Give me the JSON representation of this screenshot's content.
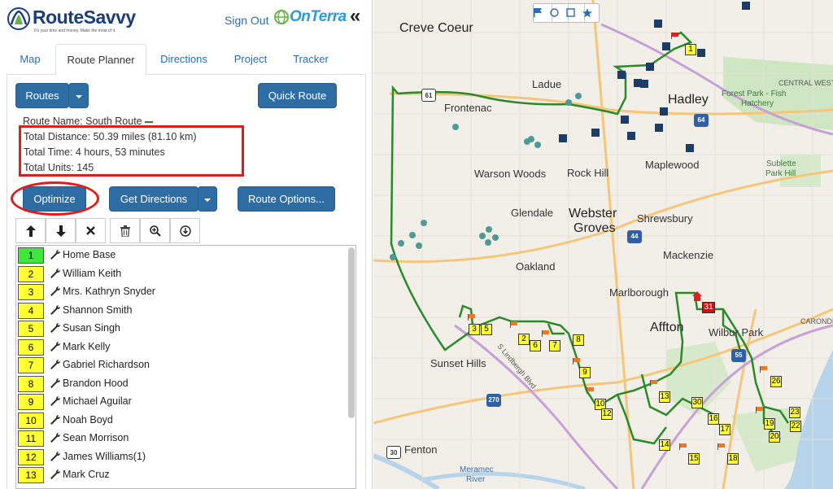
{
  "header": {
    "logo_text": "RouteSavvy",
    "logo_tagline": "It's your time and money. Make the most of it.",
    "sign_out": "Sign Out",
    "partner": "OnTerra",
    "collapse_glyph": "«"
  },
  "tabs": [
    {
      "label": "Map"
    },
    {
      "label": "Route Planner"
    },
    {
      "label": "Directions"
    },
    {
      "label": "Project"
    },
    {
      "label": "Tracker"
    }
  ],
  "buttons": {
    "routes": "Routes",
    "quick_route": "Quick Route",
    "optimize": "Optimize",
    "get_directions": "Get Directions",
    "route_options": "Route Options..."
  },
  "route_info": {
    "name": "Route Name: South Route",
    "distance": "Total Distance: 50.39 miles (81.10 km)",
    "time": "Total Time: 4 hours, 53 minutes",
    "units": "Total Units: 145",
    "route_color": "#2a8a2a"
  },
  "toolbar_icons": [
    "arrow-up-icon",
    "arrow-down-icon",
    "close-icon",
    "trash-icon",
    "zoom-in-icon",
    "download-icon"
  ],
  "stops": [
    {
      "num": "1",
      "name": "Home Base"
    },
    {
      "num": "2",
      "name": "William Keith"
    },
    {
      "num": "3",
      "name": "Mrs. Kathryn Snyder"
    },
    {
      "num": "4",
      "name": "Shannon Smith"
    },
    {
      "num": "5",
      "name": "Susan Singh"
    },
    {
      "num": "6",
      "name": "Mark Kelly"
    },
    {
      "num": "7",
      "name": "Gabriel Richardson"
    },
    {
      "num": "8",
      "name": "Brandon Hood"
    },
    {
      "num": "9",
      "name": "Michael Aguilar"
    },
    {
      "num": "10",
      "name": "Noah Boyd"
    },
    {
      "num": "11",
      "name": "Sean Morrison"
    },
    {
      "num": "12",
      "name": "James Williams(1)"
    },
    {
      "num": "13",
      "name": "Mark Cruz"
    }
  ],
  "map": {
    "places": {
      "creve_coeur": "Creve Coeur",
      "ladue": "Ladue",
      "frontenac": "Frontenac",
      "hadley": "Hadley",
      "forest_park": "Forest Park - Fish",
      "forest_park2": "Hatchery",
      "central_west": "CENTRAL WEST",
      "warson_woods": "Warson Woods",
      "rock_hill": "Rock Hill",
      "maplewood": "Maplewood",
      "sublette": "Sublette",
      "sublette2": "Park Hill",
      "glendale": "Glendale",
      "webster": "Webster",
      "groves": "Groves",
      "shrewsbury": "Shrewsbury",
      "oakland": "Oakland",
      "mackenzie": "Mackenzie",
      "marlborough": "Marlborough",
      "affton": "Affton",
      "wilbur_park": "Wilbur Park",
      "carondelet": "CARONDEL",
      "sunset_hills": "Sunset Hills",
      "lindbergh": "S Lindbergh Blvd",
      "fenton": "Fenton",
      "meramec": "Meramec",
      "meramec2": "River"
    },
    "shields": {
      "r61": "61",
      "r64": "64",
      "r44": "44",
      "r55": "55",
      "r270": "270",
      "r30": "30"
    },
    "markers": [
      {
        "n": "1"
      },
      {
        "n": "2"
      },
      {
        "n": "3"
      },
      {
        "n": "5"
      },
      {
        "n": "6"
      },
      {
        "n": "7"
      },
      {
        "n": "8"
      },
      {
        "n": "9"
      },
      {
        "n": "10"
      },
      {
        "n": "12"
      },
      {
        "n": "13"
      },
      {
        "n": "14"
      },
      {
        "n": "15"
      },
      {
        "n": "16"
      },
      {
        "n": "17"
      },
      {
        "n": "18"
      },
      {
        "n": "19"
      },
      {
        "n": "20"
      },
      {
        "n": "22"
      },
      {
        "n": "23"
      },
      {
        "n": "26"
      },
      {
        "n": "30"
      }
    ],
    "red_marker": "31",
    "controls": [
      "flag-icon",
      "circle-icon",
      "square-icon",
      "star-icon"
    ]
  }
}
